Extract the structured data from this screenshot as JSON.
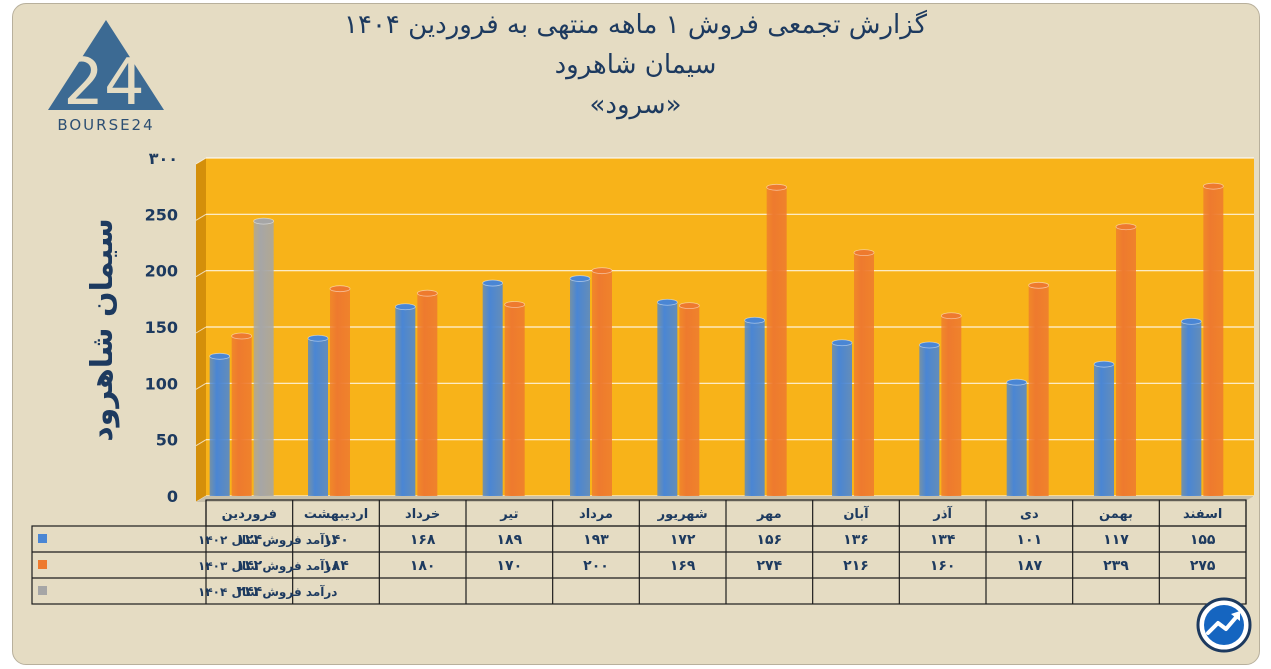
{
  "header": {
    "title_line1": "گزارش تجمعی فروش ۱ ماهه منتهی به فروردین ۱۴۰۴",
    "title_line2": "سیمان شاهرود",
    "title_line3": "«سرود»"
  },
  "logo": {
    "text": "BOURSE24",
    "mark": "24",
    "icon": "bourse24-logo"
  },
  "badge": {
    "icon": "trend-arrow-icon"
  },
  "chart_data": {
    "type": "bar",
    "ylabel": "سیمان شاهرود",
    "ylim": [
      0,
      300
    ],
    "yticks": [
      0,
      50,
      100,
      150,
      200,
      250,
      300
    ],
    "ytick_labels": [
      "0",
      "50",
      "100",
      "150",
      "200",
      "250",
      "۳۰۰"
    ],
    "grid": true,
    "categories": [
      "فروردین",
      "اردیبهشت",
      "خرداد",
      "تیر",
      "مرداد",
      "شهریور",
      "مهر",
      "آبان",
      "آذر",
      "دی",
      "بهمن",
      "اسفند"
    ],
    "series": [
      {
        "name": "درآمد فروش سال ۱۴۰۲",
        "color": "#4a86d4",
        "values": [
          124,
          140,
          168,
          189,
          193,
          172,
          156,
          136,
          134,
          101,
          117,
          155
        ],
        "labels": [
          "۱۲۴",
          "۱۴۰",
          "۱۶۸",
          "۱۸۹",
          "۱۹۳",
          "۱۷۲",
          "۱۵۶",
          "۱۳۶",
          "۱۳۴",
          "۱۰۱",
          "۱۱۷",
          "۱۵۵"
        ]
      },
      {
        "name": "درآمد فروش سال ۱۴۰۳",
        "color": "#ee7a2e",
        "values": [
          142,
          184,
          180,
          170,
          200,
          169,
          274,
          216,
          160,
          187,
          239,
          275
        ],
        "labels": [
          "۱۴۲",
          "۱۸۴",
          "۱۸۰",
          "۱۷۰",
          "۲۰۰",
          "۱۶۹",
          "۲۷۴",
          "۲۱۶",
          "۱۶۰",
          "۱۸۷",
          "۲۳۹",
          "۲۷۵"
        ]
      },
      {
        "name": "درآمد فروش سال ۱۴۰۴",
        "color": "#a6a6a6",
        "values": [
          244,
          null,
          null,
          null,
          null,
          null,
          null,
          null,
          null,
          null,
          null,
          null
        ],
        "labels": [
          "۲۴۴",
          "",
          "",
          "",
          "",
          "",
          "",
          "",
          "",
          "",
          "",
          ""
        ]
      }
    ],
    "colors": {
      "plot_bg": "#f8b319",
      "plot_side": "#d48f0a",
      "frame_bg": "#e5dcc3",
      "text": "#1d3a5f"
    }
  }
}
